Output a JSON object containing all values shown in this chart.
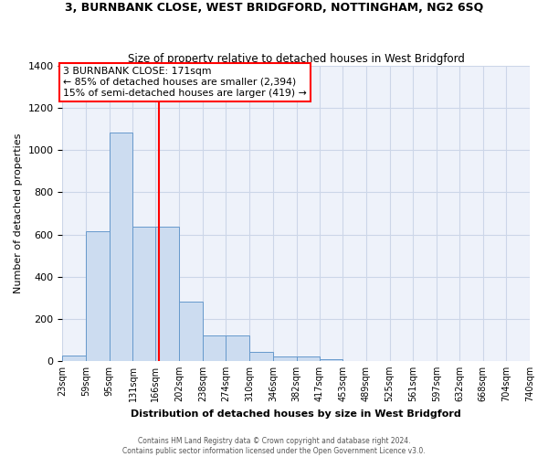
{
  "title": "3, BURNBANK CLOSE, WEST BRIDGFORD, NOTTINGHAM, NG2 6SQ",
  "subtitle": "Size of property relative to detached houses in West Bridgford",
  "xlabel": "Distribution of detached houses by size in West Bridgford",
  "ylabel": "Number of detached properties",
  "bins": [
    23,
    59,
    95,
    131,
    166,
    202,
    238,
    274,
    310,
    346,
    382,
    417,
    453,
    489,
    525,
    561,
    597,
    632,
    668,
    704,
    740
  ],
  "counts": [
    26,
    614,
    1083,
    637,
    637,
    280,
    120,
    120,
    42,
    21,
    21,
    10,
    0,
    0,
    0,
    0,
    0,
    0,
    0,
    0
  ],
  "bar_color": "#ccdcf0",
  "bar_edge_color": "#6699cc",
  "grid_color": "#ccd6e8",
  "background_color": "#eef2fa",
  "red_line_x": 171,
  "annotation_text": "3 BURNBANK CLOSE: 171sqm\n← 85% of detached houses are smaller (2,394)\n15% of semi-detached houses are larger (419) →",
  "annotation_box_color": "white",
  "annotation_box_edge": "red",
  "ylim": [
    0,
    1400
  ],
  "yticks": [
    0,
    200,
    400,
    600,
    800,
    1000,
    1200,
    1400
  ],
  "footer_line1": "Contains HM Land Registry data © Crown copyright and database right 2024.",
  "footer_line2": "Contains public sector information licensed under the Open Government Licence v3.0."
}
